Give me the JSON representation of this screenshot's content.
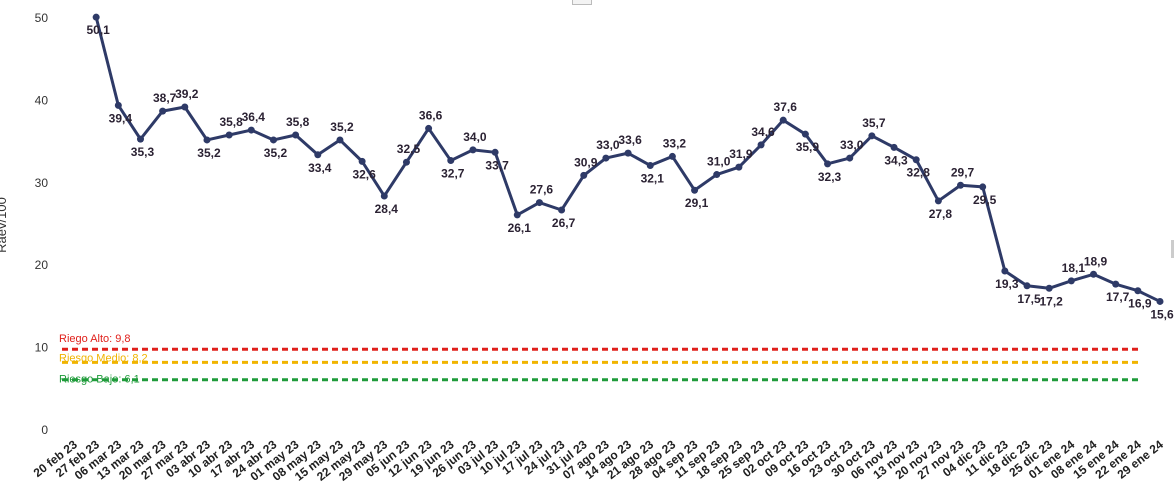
{
  "chart_data": {
    "type": "line",
    "ylabel": "Raev/100",
    "ylim": [
      0,
      52
    ],
    "yticks": [
      0,
      10,
      20,
      30,
      40,
      50
    ],
    "grid": false,
    "categories": [
      "20 feb 23",
      "27 feb 23",
      "06 mar 23",
      "13 mar 23",
      "20 mar 23",
      "27 mar 23",
      "03 abr 23",
      "10 abr 23",
      "17 abr 23",
      "24 abr 23",
      "01 may 23",
      "08 may 23",
      "15 may 23",
      "22 may 23",
      "29 may 23",
      "05 jun 23",
      "12 jun 23",
      "19 jun 23",
      "26 jun 23",
      "03 jul 23",
      "10 jul 23",
      "17 jul 23",
      "24 jul 23",
      "31 jul 23",
      "07 ago 23",
      "14 ago 23",
      "21 ago 23",
      "28 ago 23",
      "04 sep 23",
      "11 sep 23",
      "18 sep 23",
      "25 sep 23",
      "02 oct 23",
      "09 oct 23",
      "16 oct 23",
      "23 oct 23",
      "30 oct 23",
      "06 nov 23",
      "13 nov 23",
      "20 nov 23",
      "27 nov 23",
      "04 dic 23",
      "11 dic 23",
      "18 dic 23",
      "25 dic 23",
      "01 ene 24",
      "08 ene 24",
      "15 ene 24",
      "22 ene 24",
      "29 ene 24"
    ],
    "series": [
      {
        "color": "#2e3a67",
        "values": [
          null,
          50.1,
          39.4,
          35.3,
          38.7,
          39.2,
          35.2,
          35.8,
          36.4,
          35.2,
          35.8,
          33.4,
          35.2,
          32.6,
          28.4,
          32.5,
          36.6,
          32.7,
          34.0,
          33.7,
          26.1,
          27.6,
          26.7,
          30.9,
          33.0,
          33.6,
          32.1,
          33.2,
          29.1,
          31.0,
          31.9,
          34.6,
          37.6,
          35.9,
          32.3,
          33.0,
          35.7,
          34.3,
          32.8,
          27.8,
          29.7,
          29.5,
          19.3,
          17.5,
          17.2,
          18.1,
          18.9,
          17.7,
          16.9,
          15.6
        ],
        "labels": [
          "",
          "50,1",
          "39,4",
          "35,3",
          "38,7",
          "39,2",
          "35,2",
          "35,8",
          "36,4",
          "35,2",
          "35,8",
          "33,4",
          "35,2",
          "32,6",
          "28,4",
          "32,5",
          "36,6",
          "32,7",
          "34,0",
          "33,7",
          "26,1",
          "27,6",
          "26,7",
          "30,9",
          "33,0",
          "33,6",
          "32,1",
          "33,2",
          "29,1",
          "31,0",
          "31,9",
          "34,6",
          "37,6",
          "35,9",
          "32,3",
          "33,0",
          "35,7",
          "34,3",
          "32,8",
          "27,8",
          "29,7",
          "29,5",
          "19,3",
          "17,5",
          "17,2",
          "18,1",
          "18,9",
          "17,7",
          "16,9",
          "15,6"
        ]
      }
    ],
    "reference_lines": [
      {
        "label": "Riego Alto: 9,8",
        "value": 9.8,
        "color": "#e0201b"
      },
      {
        "label": "Riesgo Medio: 8,2",
        "value": 8.2,
        "color": "#f0b400"
      },
      {
        "label": "Riesgo Bajo: 6,1",
        "value": 6.1,
        "color": "#1f9b3a"
      }
    ]
  }
}
